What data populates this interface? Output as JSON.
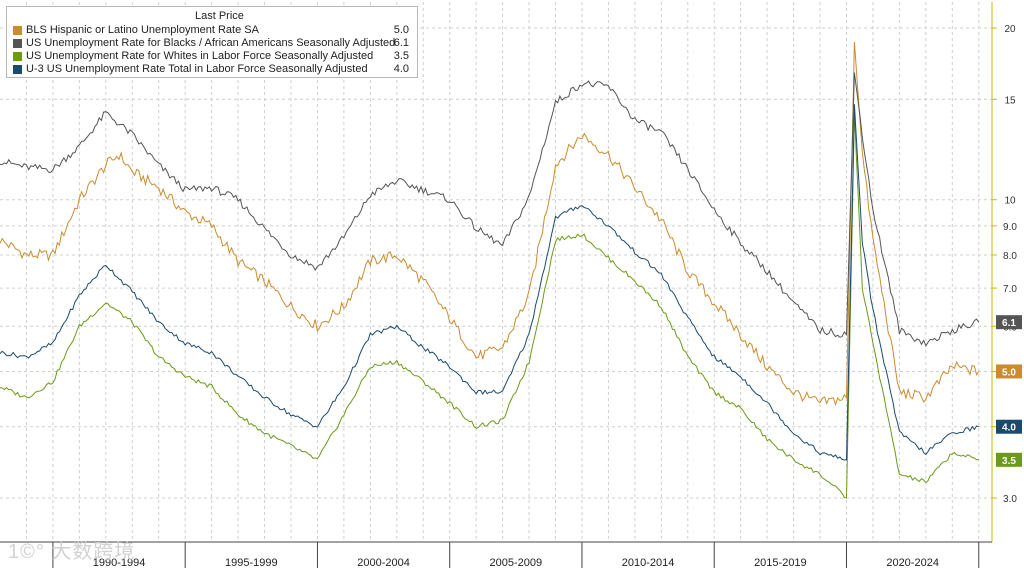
{
  "legend": {
    "header": "Last Price",
    "items": [
      {
        "name": "BLS Hispanic or Latino Unemployment Rate SA",
        "value": "5.0",
        "color": "#c98c2e"
      },
      {
        "name": "US Unemployment Rate for Blacks / African Americans Seasonally Adjusted",
        "value": "6.1",
        "color": "#555555"
      },
      {
        "name": "US Unemployment Rate for Whites in Labor Force Seasonally Adjusted",
        "value": "3.5",
        "color": "#6b9a18"
      },
      {
        "name": "U-3 US Unemployment Rate Total in Labor Force Seasonally Adjusted",
        "value": "4.0",
        "color": "#1b4a6e"
      }
    ]
  },
  "watermark": "1©° 大数跨境",
  "chart_data": {
    "type": "line",
    "yscale": "log",
    "ylim": [
      2.8,
      22
    ],
    "xlim": [
      1988.0,
      2025.5
    ],
    "y_ticks": [
      "3.0",
      "4.0",
      "5.0",
      "6.0",
      "7.0",
      "8.0",
      "9.0",
      "10",
      "15",
      "20"
    ],
    "y_tick_values": [
      3,
      4,
      5,
      6,
      7,
      8,
      9,
      10,
      15,
      20
    ],
    "x_labels": [
      "1990-1994",
      "1995-1999",
      "2000-2004",
      "2005-2009",
      "2010-2014",
      "2015-2019",
      "2020-2024"
    ],
    "x_label_centers": [
      1992.5,
      1997.5,
      2002.5,
      2007.5,
      2012.5,
      2017.5,
      2022.5
    ],
    "x_separators": [
      1990,
      1995,
      2000,
      2005,
      2010,
      2015,
      2020,
      2025
    ],
    "x_grid": [
      1989,
      1990,
      1991,
      1992,
      1993,
      1994,
      1995,
      1996,
      1997,
      1998,
      1999,
      2000,
      2001,
      2002,
      2003,
      2004,
      2005,
      2006,
      2007,
      2008,
      2009,
      2010,
      2011,
      2012,
      2013,
      2014,
      2015,
      2016,
      2017,
      2018,
      2019,
      2020,
      2021,
      2022,
      2023,
      2024,
      2025
    ],
    "last_price_labels": [
      {
        "text": "6.1",
        "y": 6.1,
        "bg": "#555555"
      },
      {
        "text": "5.0",
        "y": 5.0,
        "bg": "#c98c2e"
      },
      {
        "text": "4.0",
        "y": 4.0,
        "bg": "#1b4a6e"
      },
      {
        "text": "3.5",
        "y": 3.5,
        "bg": "#6b9a18"
      }
    ],
    "series": [
      {
        "name": "BLS Hispanic or Latino Unemployment Rate SA",
        "color": "#c98c2e",
        "x": [
          1988.0,
          1989.0,
          1990.0,
          1991.0,
          1992.0,
          1992.5,
          1993.0,
          1994.0,
          1995.0,
          1996.0,
          1997.0,
          1998.0,
          1999.0,
          2000.0,
          2001.0,
          2002.0,
          2003.0,
          2004.0,
          2005.0,
          2006.0,
          2007.0,
          2008.0,
          2009.0,
          2010.0,
          2011.0,
          2012.0,
          2013.0,
          2014.0,
          2015.0,
          2016.0,
          2017.0,
          2018.0,
          2019.0,
          2020.0,
          2020.3,
          2020.6,
          2021.0,
          2022.0,
          2023.0,
          2024.0,
          2025.0
        ],
        "y": [
          8.5,
          8.0,
          8.0,
          10.0,
          11.5,
          12.0,
          11.2,
          10.5,
          9.5,
          9.0,
          7.8,
          7.2,
          6.5,
          6.0,
          6.5,
          7.8,
          8.0,
          7.2,
          6.2,
          5.3,
          5.5,
          6.8,
          11.5,
          13.0,
          12.0,
          10.5,
          9.2,
          7.5,
          6.6,
          5.8,
          5.1,
          4.6,
          4.4,
          4.5,
          18.9,
          12.0,
          8.5,
          4.6,
          4.5,
          5.1,
          5.0
        ]
      },
      {
        "name": "US Unemployment Rate for Blacks / African Americans Seasonally Adjusted",
        "color": "#555555",
        "x": [
          1988.0,
          1989.0,
          1990.0,
          1991.0,
          1992.0,
          1993.0,
          1994.0,
          1995.0,
          1996.0,
          1997.0,
          1998.0,
          1999.0,
          2000.0,
          2001.0,
          2002.0,
          2003.0,
          2004.0,
          2005.0,
          2006.0,
          2007.0,
          2008.0,
          2009.0,
          2010.0,
          2011.0,
          2012.0,
          2013.0,
          2014.0,
          2015.0,
          2016.0,
          2017.0,
          2018.0,
          2019.0,
          2020.0,
          2020.3,
          2020.6,
          2021.0,
          2022.0,
          2023.0,
          2024.0,
          2025.0
        ],
        "y": [
          11.7,
          11.4,
          11.3,
          12.4,
          14.2,
          13.0,
          11.5,
          10.4,
          10.5,
          10.0,
          8.9,
          8.0,
          7.6,
          8.6,
          10.2,
          10.8,
          10.4,
          10.0,
          8.9,
          8.3,
          10.1,
          14.8,
          16.0,
          15.8,
          13.8,
          13.1,
          11.3,
          9.6,
          8.4,
          7.5,
          6.6,
          5.9,
          5.8,
          16.7,
          13.0,
          9.6,
          5.9,
          5.6,
          5.9,
          6.1
        ]
      },
      {
        "name": "US Unemployment Rate for Whites in Labor Force Seasonally Adjusted",
        "color": "#6b9a18",
        "x": [
          1988.0,
          1989.0,
          1990.0,
          1991.0,
          1992.0,
          1993.0,
          1994.0,
          1995.0,
          1996.0,
          1997.0,
          1998.0,
          1999.0,
          2000.0,
          2001.0,
          2002.0,
          2003.0,
          2004.0,
          2005.0,
          2006.0,
          2007.0,
          2008.0,
          2009.0,
          2010.0,
          2011.0,
          2012.0,
          2013.0,
          2014.0,
          2015.0,
          2016.0,
          2017.0,
          2018.0,
          2019.0,
          2020.0,
          2020.3,
          2020.6,
          2021.0,
          2022.0,
          2023.0,
          2024.0,
          2025.0
        ],
        "y": [
          4.7,
          4.5,
          4.8,
          6.0,
          6.6,
          6.1,
          5.3,
          4.9,
          4.7,
          4.2,
          3.9,
          3.7,
          3.5,
          4.2,
          5.1,
          5.2,
          4.8,
          4.4,
          4.0,
          4.1,
          5.2,
          8.5,
          8.7,
          7.9,
          7.2,
          6.5,
          5.3,
          4.6,
          4.3,
          3.8,
          3.5,
          3.3,
          3.0,
          14.2,
          7.0,
          5.6,
          3.3,
          3.2,
          3.6,
          3.5
        ]
      },
      {
        "name": "U-3 US Unemployment Rate Total in Labor Force Seasonally Adjusted",
        "color": "#1b4a6e",
        "x": [
          1988.0,
          1989.0,
          1990.0,
          1991.0,
          1992.0,
          1993.0,
          1994.0,
          1995.0,
          1996.0,
          1997.0,
          1998.0,
          1999.0,
          2000.0,
          2001.0,
          2002.0,
          2003.0,
          2004.0,
          2005.0,
          2006.0,
          2007.0,
          2008.0,
          2009.0,
          2010.0,
          2011.0,
          2012.0,
          2013.0,
          2014.0,
          2015.0,
          2016.0,
          2017.0,
          2018.0,
          2019.0,
          2020.0,
          2020.3,
          2020.6,
          2021.0,
          2022.0,
          2023.0,
          2024.0,
          2025.0
        ],
        "y": [
          5.4,
          5.3,
          5.6,
          6.8,
          7.7,
          6.9,
          6.1,
          5.6,
          5.4,
          4.9,
          4.5,
          4.2,
          4.0,
          4.7,
          5.8,
          6.0,
          5.5,
          5.1,
          4.6,
          4.6,
          5.8,
          9.3,
          9.8,
          9.0,
          8.1,
          7.4,
          6.2,
          5.3,
          4.9,
          4.4,
          3.9,
          3.6,
          3.5,
          14.7,
          8.4,
          6.4,
          3.9,
          3.6,
          3.9,
          4.0
        ]
      }
    ]
  }
}
